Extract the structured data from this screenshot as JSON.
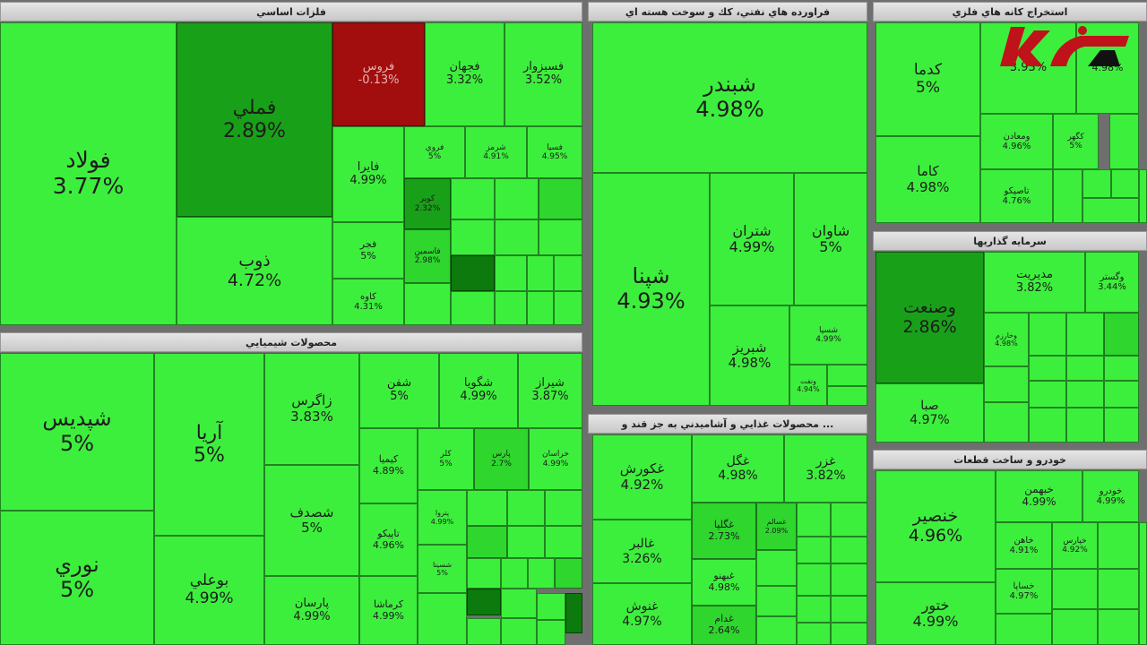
{
  "chart_data": {
    "type": "treemap",
    "colors": {
      "light": "#3def3d",
      "mid": "#2ed62e",
      "dark": "#19a019",
      "darker": "#0c7a0c",
      "negative": "#a20d0d"
    },
    "sectors": [
      {
        "id": "metals",
        "title": "فلزات اساسي",
        "stocks": [
          {
            "name": "فولاد",
            "change": "3.77%"
          },
          {
            "name": "فملي",
            "change": "2.89%"
          },
          {
            "name": "ذوب",
            "change": "4.72%"
          },
          {
            "name": "فروس",
            "change": "-0.13%"
          },
          {
            "name": "فجهان",
            "change": "3.32%"
          },
          {
            "name": "فسبزوار",
            "change": "3.52%"
          },
          {
            "name": "فايرا",
            "change": "4.99%"
          },
          {
            "name": "فروي",
            "change": "5%"
          },
          {
            "name": "شرمز",
            "change": "4.91%"
          },
          {
            "name": "فسيا",
            "change": "4.95%"
          },
          {
            "name": "فجر",
            "change": "5%"
          },
          {
            "name": "كاوه",
            "change": "4.31%"
          },
          {
            "name": "كوير",
            "change": "2.32%"
          },
          {
            "name": "فاسمين",
            "change": "2.98%"
          }
        ]
      },
      {
        "id": "oil",
        "title": "فراورده هاي نفتي، كك و سوخت هسته اي",
        "stocks": [
          {
            "name": "شبندر",
            "change": "4.98%"
          },
          {
            "name": "شپنا",
            "change": "4.93%"
          },
          {
            "name": "شتران",
            "change": "4.99%"
          },
          {
            "name": "شاوان",
            "change": "5%"
          },
          {
            "name": "شبريز",
            "change": "4.98%"
          },
          {
            "name": "شسپا",
            "change": "4.99%"
          },
          {
            "name": "ونفت",
            "change": "4.94%"
          }
        ]
      },
      {
        "id": "mining",
        "title": "استخراج كانه هاي فلزي",
        "stocks": [
          {
            "name": "كدما",
            "change": "5%"
          },
          {
            "name": "كاما",
            "change": "4.98%"
          },
          {
            "name": "",
            "change": "3.93%"
          },
          {
            "name": "",
            "change": "4.98%"
          },
          {
            "name": "ومعادن",
            "change": "4.96%"
          },
          {
            "name": "كگهر",
            "change": "5%"
          },
          {
            "name": "تاصيكو",
            "change": "4.76%"
          }
        ]
      },
      {
        "id": "invest",
        "title": "سرمايه گذاريها",
        "stocks": [
          {
            "name": "وصنعت",
            "change": "2.86%"
          },
          {
            "name": "صبا",
            "change": "4.97%"
          },
          {
            "name": "مديريت",
            "change": "3.82%"
          },
          {
            "name": "وگستر",
            "change": "3.44%"
          },
          {
            "name": "وخارزم",
            "change": "4.98%"
          }
        ]
      },
      {
        "id": "chem",
        "title": "محصولات شيميايي",
        "stocks": [
          {
            "name": "شپديس",
            "change": "5%"
          },
          {
            "name": "نوري",
            "change": "5%"
          },
          {
            "name": "آريا",
            "change": "5%"
          },
          {
            "name": "بوعلي",
            "change": "4.99%"
          },
          {
            "name": "زاگرس",
            "change": "3.83%"
          },
          {
            "name": "شصدف",
            "change": "5%"
          },
          {
            "name": "پارسان",
            "change": "4.99%"
          },
          {
            "name": "شفن",
            "change": "5%"
          },
          {
            "name": "شگويا",
            "change": "4.99%"
          },
          {
            "name": "شيراز",
            "change": "3.87%"
          },
          {
            "name": "كيميا",
            "change": "4.89%"
          },
          {
            "name": "كرماشا",
            "change": "4.99%"
          },
          {
            "name": "تاپيكو",
            "change": "4.96%"
          },
          {
            "name": "كلر",
            "change": "5%"
          },
          {
            "name": "پارس",
            "change": "2.7%"
          },
          {
            "name": "خراسان",
            "change": "4.99%"
          },
          {
            "name": "پتروا",
            "change": "4.99%"
          },
          {
            "name": "شسينا",
            "change": "5%"
          }
        ]
      },
      {
        "id": "food",
        "title": "محصولات غذايي و آشاميدني به جز قند و ...",
        "stocks": [
          {
            "name": "غكورش",
            "change": "4.92%"
          },
          {
            "name": "غالبر",
            "change": "3.26%"
          },
          {
            "name": "غنوش",
            "change": "4.97%"
          },
          {
            "name": "غگل",
            "change": "4.98%"
          },
          {
            "name": "غزر",
            "change": "3.82%"
          },
          {
            "name": "غگلپا",
            "change": "2.73%"
          },
          {
            "name": "غبهنو",
            "change": "4.98%"
          },
          {
            "name": "غدام",
            "change": "2.64%"
          },
          {
            "name": "غسالم",
            "change": "2.09%"
          }
        ]
      },
      {
        "id": "auto",
        "title": "خودرو و ساخت قطعات",
        "stocks": [
          {
            "name": "خنصير",
            "change": "4.96%"
          },
          {
            "name": "ختور",
            "change": "4.99%"
          },
          {
            "name": "خبهمن",
            "change": "4.99%"
          },
          {
            "name": "خودرو",
            "change": "4.99%"
          },
          {
            "name": "خاهن",
            "change": "4.91%"
          },
          {
            "name": "خپارس",
            "change": "4.92%"
          },
          {
            "name": "خساپا",
            "change": "4.97%"
          }
        ]
      }
    ]
  }
}
